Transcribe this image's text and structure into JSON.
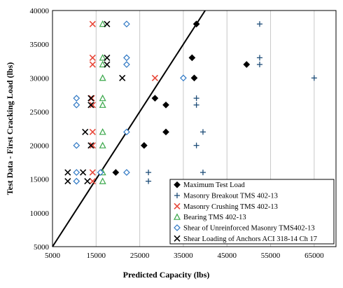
{
  "chart_data": {
    "type": "scatter",
    "title": "",
    "xlabel": "Predicted Capacity (lbs)",
    "ylabel": "Test Data - First Cracking Load (lbs)",
    "xlim": [
      5000,
      70000
    ],
    "ylim": [
      5000,
      40000
    ],
    "xticks": [
      5000,
      15000,
      25000,
      35000,
      45000,
      55000,
      65000
    ],
    "yticks": [
      5000,
      10000,
      15000,
      20000,
      25000,
      30000,
      35000,
      40000
    ],
    "x_tick_labels": [
      "5000",
      "15000",
      "25000",
      "35000",
      "45000",
      "55000",
      "65000"
    ],
    "y_tick_labels": [
      "5000",
      "10000",
      "15000",
      "20000",
      "25000",
      "30000",
      "35000",
      "40000"
    ],
    "grid": "vertical",
    "legend_position": "bottom-right",
    "reference_line": {
      "kind": "y_equals_x"
    },
    "series": [
      {
        "name": "Maximum Test Load",
        "marker": "diamond-filled",
        "color": "#000000",
        "points": [
          [
            38000,
            38000
          ],
          [
            37000,
            33000
          ],
          [
            37500,
            30000
          ],
          [
            28500,
            27000
          ],
          [
            31000,
            26000
          ],
          [
            31000,
            22000
          ],
          [
            26000,
            20000
          ],
          [
            49500,
            32000
          ],
          [
            19500,
            16000
          ]
        ]
      },
      {
        "name": "Masonry Breakout TMS 402-13",
        "marker": "plus",
        "color": "#1f4e79",
        "points": [
          [
            52500,
            38000
          ],
          [
            52500,
            33000
          ],
          [
            52500,
            32000
          ],
          [
            65000,
            30000
          ],
          [
            38000,
            27000
          ],
          [
            38000,
            26000
          ],
          [
            39500,
            22000
          ],
          [
            38000,
            20000
          ],
          [
            27000,
            16000
          ],
          [
            27000,
            14700
          ],
          [
            39500,
            16000
          ]
        ]
      },
      {
        "name": "Masonry Crushing TMS 402-13",
        "marker": "x",
        "color": "#e8483a",
        "points": [
          [
            14200,
            38000
          ],
          [
            14200,
            33000
          ],
          [
            14200,
            32000
          ],
          [
            28500,
            30000
          ],
          [
            14000,
            27000
          ],
          [
            14200,
            26000
          ],
          [
            14200,
            22000
          ],
          [
            14200,
            20000
          ],
          [
            14200,
            16000
          ],
          [
            14200,
            14700
          ]
        ]
      },
      {
        "name": "Bearing TMS 402-13",
        "marker": "triangle-open",
        "color": "#3aa74a",
        "points": [
          [
            16500,
            38000
          ],
          [
            16500,
            33000
          ],
          [
            16500,
            32000
          ],
          [
            16500,
            30000
          ],
          [
            16500,
            27000
          ],
          [
            16500,
            26000
          ],
          [
            16500,
            22000
          ],
          [
            16500,
            20000
          ],
          [
            16500,
            16000
          ],
          [
            16500,
            14700
          ]
        ]
      },
      {
        "name": "Shear of Unreinforced Masonry TMS402-13",
        "marker": "diamond-open",
        "color": "#2f78c4",
        "points": [
          [
            22000,
            38000
          ],
          [
            22000,
            33000
          ],
          [
            22000,
            32000
          ],
          [
            35000,
            30000
          ],
          [
            10500,
            27000
          ],
          [
            10500,
            26000
          ],
          [
            22000,
            22000
          ],
          [
            10500,
            20000
          ],
          [
            10500,
            16000
          ],
          [
            10500,
            14700
          ],
          [
            16000,
            16000
          ],
          [
            22000,
            16000
          ]
        ]
      },
      {
        "name": "Shear Loading of Anchors ACI 318-14 Ch 17",
        "marker": "x",
        "color": "#000000",
        "points": [
          [
            17500,
            38000
          ],
          [
            17500,
            33000
          ],
          [
            17500,
            32000
          ],
          [
            21000,
            30000
          ],
          [
            13800,
            27000
          ],
          [
            13800,
            26000
          ],
          [
            12500,
            22000
          ],
          [
            13800,
            20000
          ],
          [
            8500,
            16000
          ],
          [
            8500,
            14700
          ],
          [
            12000,
            16000
          ],
          [
            13000,
            14700
          ]
        ]
      }
    ]
  }
}
